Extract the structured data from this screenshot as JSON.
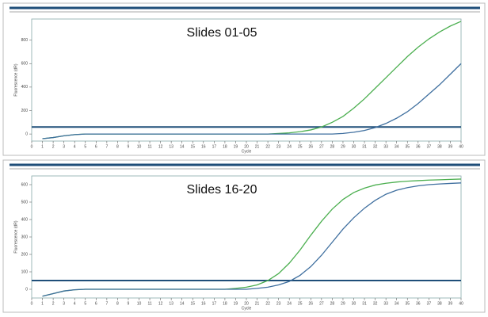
{
  "chart_data": [
    {
      "type": "line",
      "title": "Slides 01-05",
      "xlabel": "Cycle",
      "ylabel": "Fluorescence (dR)",
      "x": [
        1,
        2,
        3,
        4,
        5,
        6,
        7,
        8,
        9,
        10,
        11,
        12,
        13,
        14,
        15,
        16,
        17,
        18,
        19,
        20,
        21,
        22,
        23,
        24,
        25,
        26,
        27,
        28,
        29,
        30,
        31,
        32,
        33,
        34,
        35,
        36,
        37,
        38,
        39,
        40
      ],
      "xlim": [
        0,
        40
      ],
      "xticks": [
        0,
        1,
        2,
        3,
        4,
        5,
        6,
        7,
        8,
        9,
        10,
        11,
        12,
        13,
        14,
        15,
        16,
        17,
        18,
        19,
        20,
        21,
        22,
        23,
        24,
        25,
        26,
        27,
        28,
        29,
        30,
        31,
        32,
        33,
        34,
        35,
        36,
        37,
        38,
        39,
        40
      ],
      "ylim": [
        -60,
        980
      ],
      "yticks": [
        0,
        200,
        400,
        600,
        800
      ],
      "threshold": 60,
      "threshold_color": "#1f4e79",
      "series": [
        {
          "color": "#4caf50",
          "values": [
            -40,
            -30,
            -15,
            -5,
            0,
            0,
            0,
            0,
            0,
            0,
            0,
            0,
            0,
            0,
            0,
            0,
            0,
            0,
            0,
            0,
            0,
            0,
            5,
            10,
            20,
            35,
            60,
            100,
            150,
            220,
            300,
            390,
            480,
            570,
            660,
            740,
            810,
            870,
            920,
            960
          ]
        },
        {
          "color": "#3f6f9f",
          "values": [
            -40,
            -30,
            -15,
            -5,
            0,
            0,
            0,
            0,
            0,
            0,
            0,
            0,
            0,
            0,
            0,
            0,
            0,
            0,
            0,
            0,
            0,
            0,
            0,
            0,
            0,
            0,
            0,
            0,
            5,
            15,
            30,
            55,
            90,
            135,
            190,
            260,
            340,
            420,
            510,
            600
          ]
        }
      ]
    },
    {
      "type": "line",
      "title": "Slides 16-20",
      "xlabel": "Cycle",
      "ylabel": "Fluorescence (dR)",
      "x": [
        1,
        2,
        3,
        4,
        5,
        6,
        7,
        8,
        9,
        10,
        11,
        12,
        13,
        14,
        15,
        16,
        17,
        18,
        19,
        20,
        21,
        22,
        23,
        24,
        25,
        26,
        27,
        28,
        29,
        30,
        31,
        32,
        33,
        34,
        35,
        36,
        37,
        38,
        39,
        40
      ],
      "xlim": [
        0,
        40
      ],
      "xticks": [
        0,
        1,
        2,
        3,
        4,
        5,
        6,
        7,
        8,
        9,
        10,
        11,
        12,
        13,
        14,
        15,
        16,
        17,
        18,
        19,
        20,
        21,
        22,
        23,
        24,
        25,
        26,
        27,
        28,
        29,
        30,
        31,
        32,
        33,
        34,
        35,
        36,
        37,
        38,
        39,
        40
      ],
      "ylim": [
        -50,
        650
      ],
      "yticks": [
        0,
        100,
        200,
        300,
        400,
        500,
        600
      ],
      "threshold": 50,
      "threshold_color": "#1f4e79",
      "series": [
        {
          "color": "#4caf50",
          "values": [
            -40,
            -25,
            -10,
            -3,
            0,
            0,
            0,
            0,
            0,
            0,
            0,
            0,
            0,
            0,
            0,
            0,
            0,
            0,
            5,
            12,
            25,
            50,
            90,
            150,
            225,
            310,
            390,
            460,
            515,
            555,
            580,
            598,
            608,
            615,
            620,
            623,
            626,
            628,
            630,
            632
          ]
        },
        {
          "color": "#3f6f9f",
          "values": [
            -40,
            -25,
            -10,
            -3,
            0,
            0,
            0,
            0,
            0,
            0,
            0,
            0,
            0,
            0,
            0,
            0,
            0,
            0,
            0,
            0,
            5,
            12,
            25,
            45,
            80,
            130,
            195,
            270,
            345,
            410,
            465,
            510,
            545,
            568,
            583,
            593,
            600,
            604,
            607,
            610
          ]
        }
      ]
    }
  ]
}
